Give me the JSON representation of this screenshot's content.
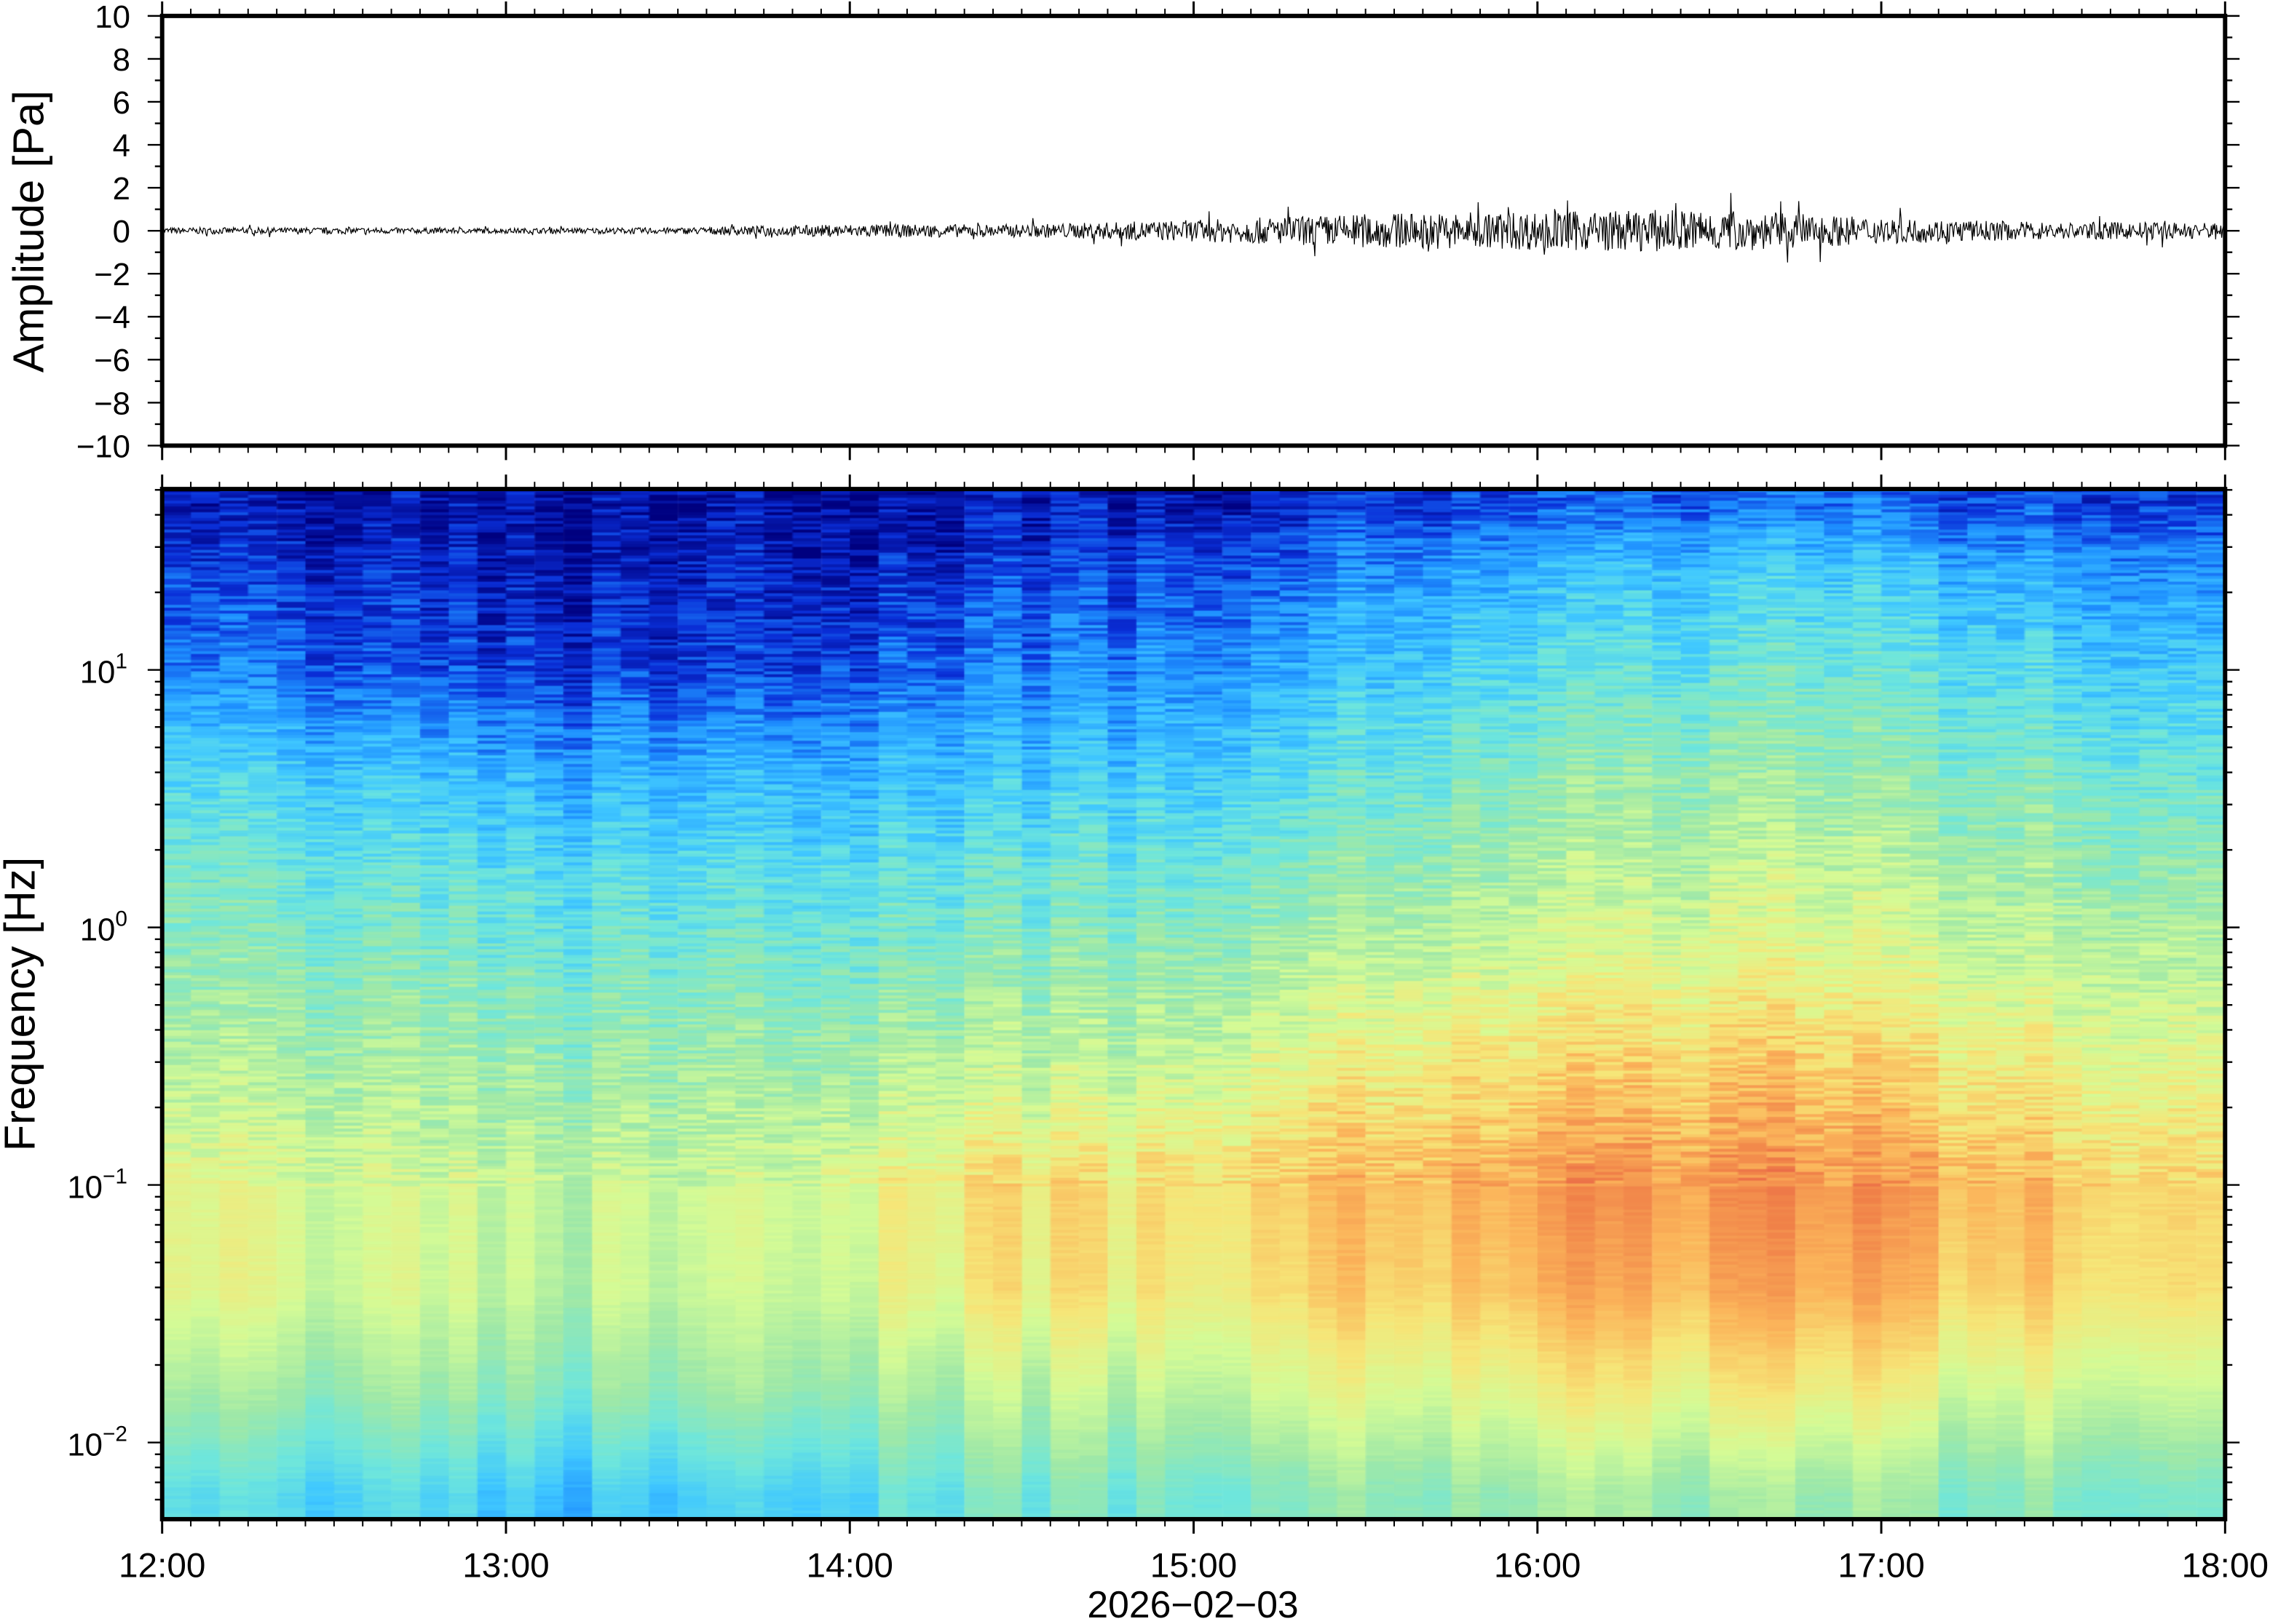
{
  "chart_data": [
    {
      "type": "line",
      "panel": "waveform",
      "ylabel": "Amplitude [Pa]",
      "ylim": [
        -10,
        10
      ],
      "yticks": [
        "10",
        "8",
        "6",
        "4",
        "2",
        "0",
        "−2",
        "−4",
        "−6",
        "−8",
        "−10"
      ],
      "ytick_values": [
        10,
        8,
        6,
        4,
        2,
        0,
        -2,
        -4,
        -6,
        -8,
        -10
      ],
      "x_time_bins": [
        "12:00",
        "12:30",
        "13:00",
        "13:30",
        "14:00",
        "14:30",
        "15:00",
        "15:30",
        "16:00",
        "16:30",
        "17:00",
        "17:30"
      ],
      "envelope_pa": [
        0.15,
        0.15,
        0.12,
        0.15,
        0.3,
        0.3,
        0.5,
        0.8,
        0.9,
        1.0,
        0.6,
        0.4
      ],
      "peak_pa": 1.9
    },
    {
      "type": "heatmap",
      "panel": "spectrogram",
      "ylabel": "Frequency [Hz]",
      "yscale": "log",
      "ylim": [
        0.005,
        50
      ],
      "yticks": [
        {
          "base": "10",
          "exp": "1",
          "value": 10
        },
        {
          "base": "10",
          "exp": "0",
          "value": 1
        },
        {
          "base": "10",
          "exp": "−1",
          "value": 0.1
        },
        {
          "base": "10",
          "exp": "−2",
          "value": 0.01
        }
      ],
      "xlabel": "2026−02−03",
      "xticks": [
        "12:00",
        "13:00",
        "14:00",
        "15:00",
        "16:00",
        "17:00",
        "18:00"
      ],
      "xlim": [
        "12:00",
        "18:00"
      ],
      "colormap": [
        "#00007f",
        "#0a2fd8",
        "#1e90ff",
        "#40c8ff",
        "#6ee6dc",
        "#9ee8a8",
        "#d4fb96",
        "#f6e678",
        "#fbb45a",
        "#f08048",
        "#e04848"
      ],
      "log10_freq_bands": [
        -2.2,
        -1.8,
        -1.4,
        -1.0,
        -0.6,
        -0.2,
        0.2,
        0.6,
        1.0,
        1.4,
        1.65
      ],
      "time_bins": [
        "12:00",
        "12:30",
        "13:00",
        "13:30",
        "14:00",
        "14:30",
        "15:00",
        "15:30",
        "16:00",
        "16:30",
        "17:00",
        "17:30"
      ],
      "relative_power": [
        [
          0.35,
          0.5,
          0.62,
          0.62,
          0.55,
          0.48,
          0.42,
          0.33,
          0.18,
          0.1,
          0.05
        ],
        [
          0.33,
          0.48,
          0.58,
          0.58,
          0.52,
          0.45,
          0.38,
          0.28,
          0.12,
          0.07,
          0.04
        ],
        [
          0.28,
          0.45,
          0.55,
          0.56,
          0.5,
          0.43,
          0.35,
          0.25,
          0.1,
          0.05,
          0.03
        ],
        [
          0.3,
          0.47,
          0.55,
          0.57,
          0.5,
          0.43,
          0.35,
          0.25,
          0.1,
          0.05,
          0.03
        ],
        [
          0.42,
          0.55,
          0.68,
          0.7,
          0.58,
          0.48,
          0.4,
          0.3,
          0.18,
          0.1,
          0.05
        ],
        [
          0.42,
          0.55,
          0.68,
          0.7,
          0.58,
          0.48,
          0.4,
          0.3,
          0.2,
          0.12,
          0.06
        ],
        [
          0.45,
          0.6,
          0.72,
          0.75,
          0.65,
          0.55,
          0.45,
          0.35,
          0.25,
          0.15,
          0.08
        ],
        [
          0.5,
          0.65,
          0.78,
          0.82,
          0.72,
          0.62,
          0.52,
          0.45,
          0.35,
          0.25,
          0.12
        ],
        [
          0.5,
          0.66,
          0.8,
          0.85,
          0.75,
          0.64,
          0.55,
          0.48,
          0.38,
          0.28,
          0.14
        ],
        [
          0.5,
          0.68,
          0.82,
          0.87,
          0.78,
          0.66,
          0.58,
          0.5,
          0.42,
          0.32,
          0.18
        ],
        [
          0.45,
          0.6,
          0.75,
          0.8,
          0.7,
          0.6,
          0.52,
          0.45,
          0.36,
          0.26,
          0.12
        ],
        [
          0.42,
          0.57,
          0.7,
          0.72,
          0.64,
          0.56,
          0.48,
          0.4,
          0.3,
          0.2,
          0.1
        ]
      ]
    }
  ]
}
